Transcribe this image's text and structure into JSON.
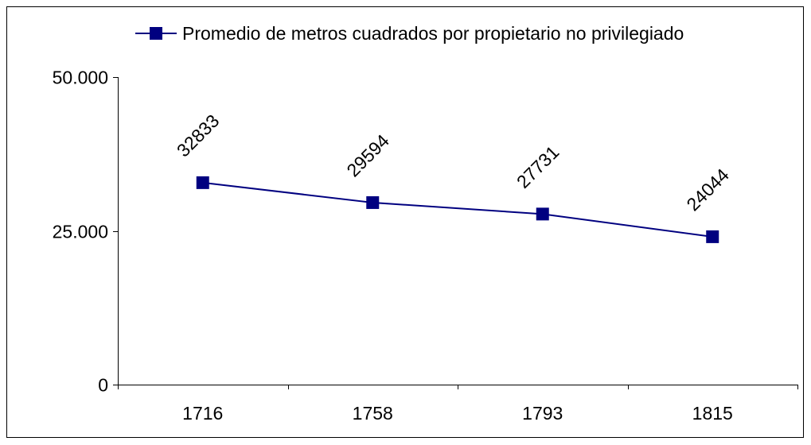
{
  "chart_data": {
    "type": "line",
    "series": [
      {
        "name": "Promedio de metros cuadrados por propietario no privilegiado",
        "color": "#000080",
        "values": [
          32833,
          29594,
          27731,
          24044
        ]
      }
    ],
    "categories": [
      "1716",
      "1758",
      "1793",
      "1815"
    ],
    "ylim": [
      0,
      50000
    ],
    "yticks": [
      0,
      {
        "value": 25000,
        "label": "25.000"
      },
      {
        "value": 50000,
        "label": "50.000"
      }
    ],
    "legend": "top",
    "grid": false
  }
}
